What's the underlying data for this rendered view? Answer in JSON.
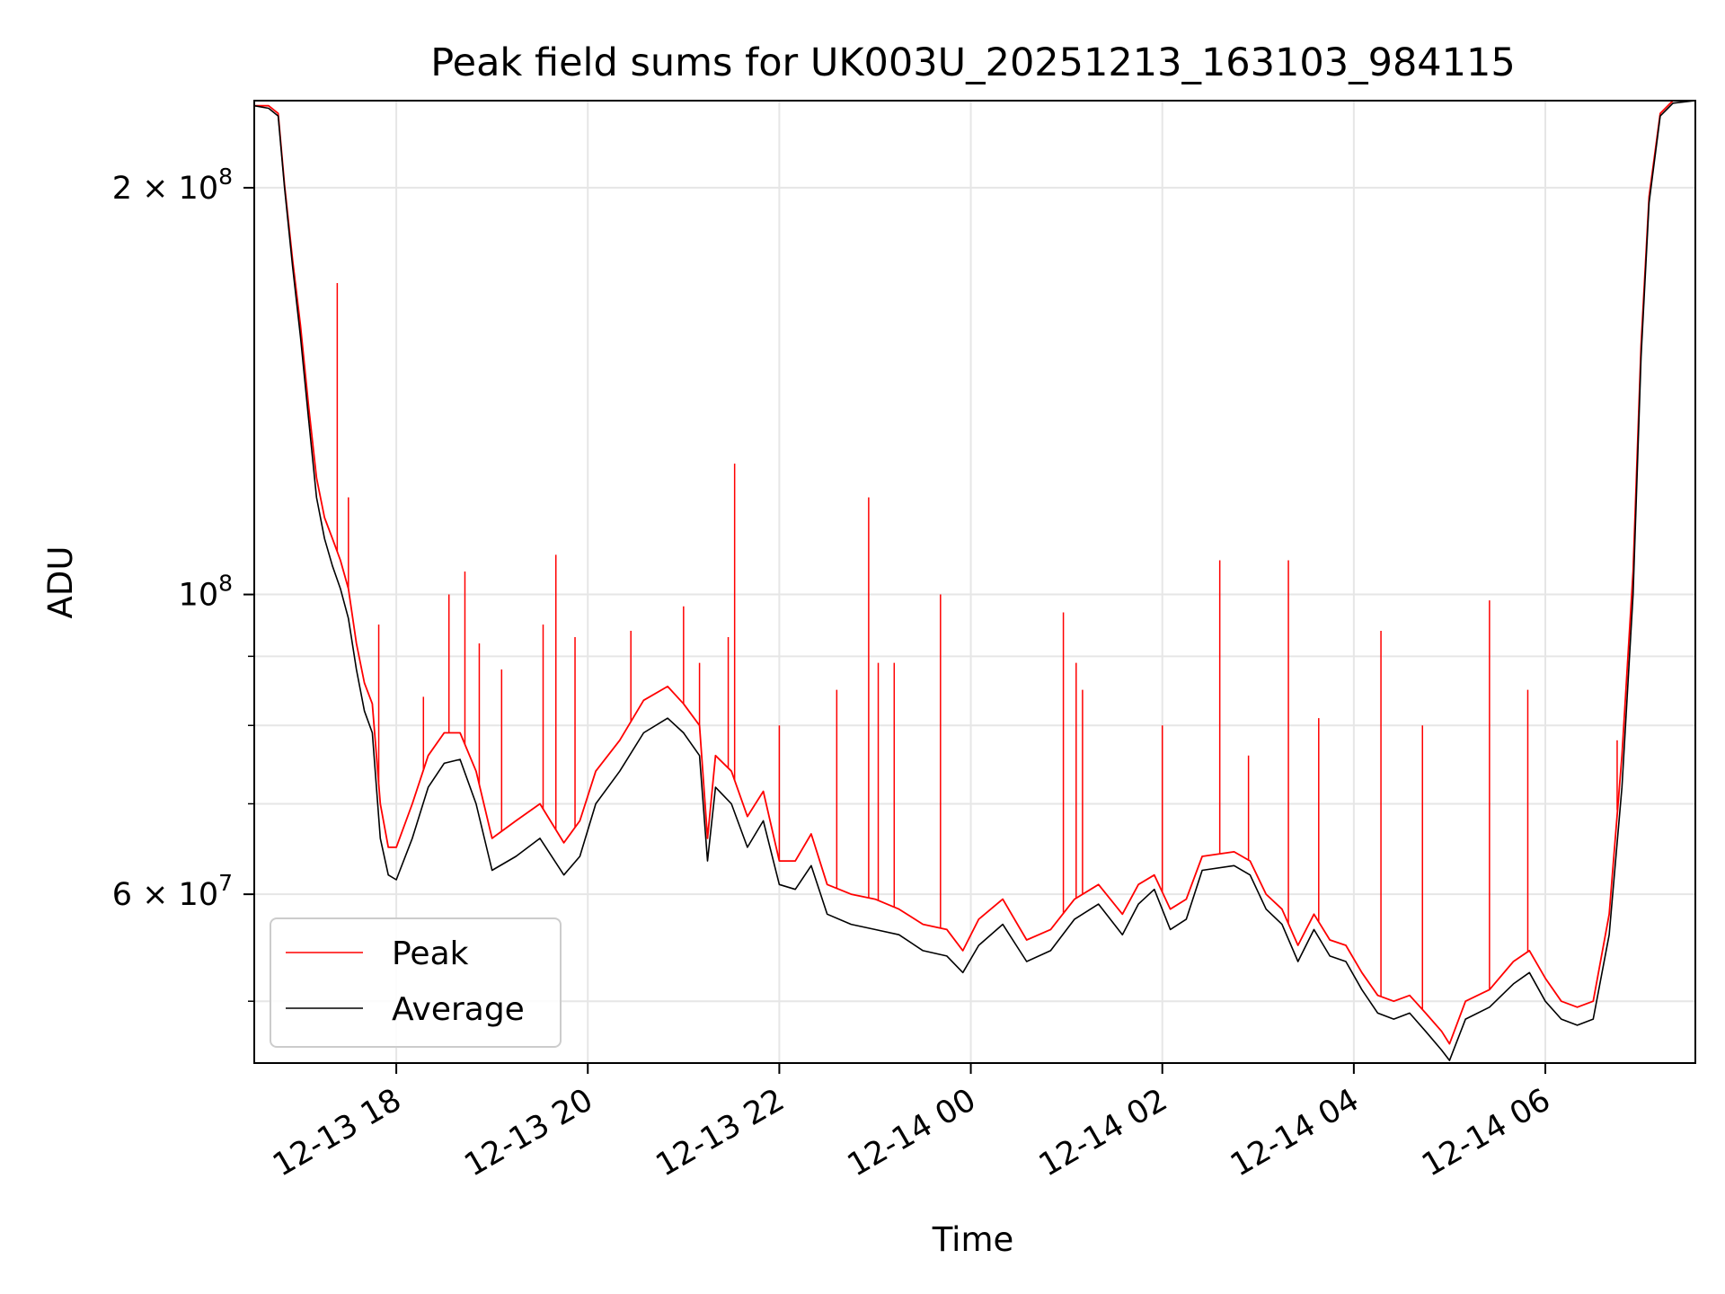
{
  "chart_data": {
    "type": "line",
    "title": "Peak field sums for UK003U_20251213_163103_984115",
    "xlabel": "Time",
    "ylabel": "ADU",
    "yscale": "log",
    "xlim": [
      "2025-12-13T16:31",
      "2025-12-14T07:34"
    ],
    "ylim": [
      45000000,
      232000000
    ],
    "x_ticks": [
      {
        "x": "2025-12-13T18:00",
        "label": "12-13 18"
      },
      {
        "x": "2025-12-13T20:00",
        "label": "12-13 20"
      },
      {
        "x": "2025-12-13T22:00",
        "label": "12-13 22"
      },
      {
        "x": "2025-12-14T00:00",
        "label": "12-14 00"
      },
      {
        "x": "2025-12-14T02:00",
        "label": "12-14 02"
      },
      {
        "x": "2025-12-14T04:00",
        "label": "12-14 04"
      },
      {
        "x": "2025-12-14T06:00",
        "label": "12-14 06"
      }
    ],
    "y_major_ticks": [
      {
        "y": 100000000,
        "base": "10",
        "exp": "8"
      },
      {
        "y": 200000000,
        "mant": "2 × 10",
        "exp": "8"
      },
      {
        "y": 60000000,
        "mant": "6 × 10",
        "exp": "7"
      }
    ],
    "y_minor_ticks": [
      50000000,
      70000000,
      80000000,
      90000000
    ],
    "grid": true,
    "legend_position": "bottom-left",
    "series": [
      {
        "name": "Average",
        "color": "#000000",
        "points": [
          [
            "2025-12-13T16:31",
            230000000
          ],
          [
            "2025-12-13T16:40",
            229000000
          ],
          [
            "2025-12-13T16:46",
            226000000
          ],
          [
            "2025-12-13T16:50",
            200000000
          ],
          [
            "2025-12-13T16:55",
            175000000
          ],
          [
            "2025-12-13T17:00",
            155000000
          ],
          [
            "2025-12-13T17:05",
            135000000
          ],
          [
            "2025-12-13T17:10",
            118000000
          ],
          [
            "2025-12-13T17:15",
            110000000
          ],
          [
            "2025-12-13T17:20",
            105000000
          ],
          [
            "2025-12-13T17:25",
            101000000
          ],
          [
            "2025-12-13T17:30",
            96000000
          ],
          [
            "2025-12-13T17:35",
            88000000
          ],
          [
            "2025-12-13T17:40",
            82000000
          ],
          [
            "2025-12-13T17:45",
            79000000
          ],
          [
            "2025-12-13T17:50",
            66000000
          ],
          [
            "2025-12-13T17:55",
            62000000
          ],
          [
            "2025-12-13T18:00",
            61500000
          ],
          [
            "2025-12-13T18:10",
            66000000
          ],
          [
            "2025-12-13T18:20",
            72000000
          ],
          [
            "2025-12-13T18:30",
            75000000
          ],
          [
            "2025-12-13T18:40",
            75500000
          ],
          [
            "2025-12-13T18:50",
            70000000
          ],
          [
            "2025-12-13T19:00",
            62500000
          ],
          [
            "2025-12-13T19:15",
            64000000
          ],
          [
            "2025-12-13T19:30",
            66000000
          ],
          [
            "2025-12-13T19:45",
            62000000
          ],
          [
            "2025-12-13T19:55",
            64000000
          ],
          [
            "2025-12-13T20:05",
            70000000
          ],
          [
            "2025-12-13T20:20",
            74000000
          ],
          [
            "2025-12-13T20:35",
            79000000
          ],
          [
            "2025-12-13T20:50",
            81000000
          ],
          [
            "2025-12-13T21:00",
            79000000
          ],
          [
            "2025-12-13T21:10",
            76000000
          ],
          [
            "2025-12-13T21:15",
            63500000
          ],
          [
            "2025-12-13T21:20",
            72000000
          ],
          [
            "2025-12-13T21:30",
            70000000
          ],
          [
            "2025-12-13T21:40",
            65000000
          ],
          [
            "2025-12-13T21:50",
            68000000
          ],
          [
            "2025-12-13T22:00",
            61000000
          ],
          [
            "2025-12-13T22:10",
            60500000
          ],
          [
            "2025-12-13T22:20",
            63000000
          ],
          [
            "2025-12-13T22:30",
            58000000
          ],
          [
            "2025-12-13T22:45",
            57000000
          ],
          [
            "2025-12-13T23:00",
            56500000
          ],
          [
            "2025-12-13T23:15",
            56000000
          ],
          [
            "2025-12-13T23:30",
            54500000
          ],
          [
            "2025-12-13T23:45",
            54000000
          ],
          [
            "2025-12-13T23:55",
            52500000
          ],
          [
            "2025-12-14T00:05",
            55000000
          ],
          [
            "2025-12-14T00:20",
            57000000
          ],
          [
            "2025-12-14T00:35",
            53500000
          ],
          [
            "2025-12-14T00:50",
            54500000
          ],
          [
            "2025-12-14T01:05",
            57500000
          ],
          [
            "2025-12-14T01:20",
            59000000
          ],
          [
            "2025-12-14T01:35",
            56000000
          ],
          [
            "2025-12-14T01:45",
            59000000
          ],
          [
            "2025-12-14T01:55",
            60500000
          ],
          [
            "2025-12-14T02:05",
            56500000
          ],
          [
            "2025-12-14T02:15",
            57500000
          ],
          [
            "2025-12-14T02:25",
            62500000
          ],
          [
            "2025-12-14T02:45",
            63000000
          ],
          [
            "2025-12-14T02:55",
            62000000
          ],
          [
            "2025-12-14T03:05",
            58500000
          ],
          [
            "2025-12-14T03:15",
            57000000
          ],
          [
            "2025-12-14T03:25",
            53500000
          ],
          [
            "2025-12-14T03:35",
            56500000
          ],
          [
            "2025-12-14T03:45",
            54000000
          ],
          [
            "2025-12-14T03:55",
            53500000
          ],
          [
            "2025-12-14T04:05",
            51000000
          ],
          [
            "2025-12-14T04:15",
            49000000
          ],
          [
            "2025-12-14T04:25",
            48500000
          ],
          [
            "2025-12-14T04:35",
            49000000
          ],
          [
            "2025-12-14T04:45",
            47500000
          ],
          [
            "2025-12-14T04:55",
            46000000
          ],
          [
            "2025-12-14T05:00",
            45200000
          ],
          [
            "2025-12-14T05:10",
            48500000
          ],
          [
            "2025-12-14T05:25",
            49500000
          ],
          [
            "2025-12-14T05:40",
            51500000
          ],
          [
            "2025-12-14T05:50",
            52500000
          ],
          [
            "2025-12-14T06:00",
            50000000
          ],
          [
            "2025-12-14T06:10",
            48500000
          ],
          [
            "2025-12-14T06:20",
            48000000
          ],
          [
            "2025-12-14T06:30",
            48500000
          ],
          [
            "2025-12-14T06:40",
            56000000
          ],
          [
            "2025-12-14T06:48",
            72000000
          ],
          [
            "2025-12-14T06:55",
            100000000
          ],
          [
            "2025-12-14T07:00",
            150000000
          ],
          [
            "2025-12-14T07:05",
            195000000
          ],
          [
            "2025-12-14T07:12",
            226000000
          ],
          [
            "2025-12-14T07:20",
            231000000
          ],
          [
            "2025-12-14T07:34",
            232000000
          ]
        ]
      },
      {
        "name": "Peak",
        "color": "#ff0000",
        "points": [
          [
            "2025-12-13T16:31",
            230000000
          ],
          [
            "2025-12-13T16:40",
            230000000
          ],
          [
            "2025-12-13T16:46",
            227000000
          ],
          [
            "2025-12-13T16:50",
            201000000
          ],
          [
            "2025-12-13T16:55",
            177000000
          ],
          [
            "2025-12-13T17:00",
            158000000
          ],
          [
            "2025-12-13T17:05",
            138000000
          ],
          [
            "2025-12-13T17:10",
            122000000
          ],
          [
            "2025-12-13T17:15",
            114000000
          ],
          [
            "2025-12-13T17:20",
            110000000
          ],
          [
            "2025-12-13T17:25",
            106000000
          ],
          [
            "2025-12-13T17:30",
            101000000
          ],
          [
            "2025-12-13T17:35",
            92000000
          ],
          [
            "2025-12-13T17:40",
            86000000
          ],
          [
            "2025-12-13T17:45",
            83000000
          ],
          [
            "2025-12-13T17:50",
            70000000
          ],
          [
            "2025-12-13T17:55",
            65000000
          ],
          [
            "2025-12-13T18:00",
            65000000
          ],
          [
            "2025-12-13T18:10",
            70000000
          ],
          [
            "2025-12-13T18:20",
            76000000
          ],
          [
            "2025-12-13T18:30",
            79000000
          ],
          [
            "2025-12-13T18:40",
            79000000
          ],
          [
            "2025-12-13T18:50",
            74000000
          ],
          [
            "2025-12-13T19:00",
            66000000
          ],
          [
            "2025-12-13T19:15",
            68000000
          ],
          [
            "2025-12-13T19:30",
            70000000
          ],
          [
            "2025-12-13T19:45",
            65500000
          ],
          [
            "2025-12-13T19:55",
            68000000
          ],
          [
            "2025-12-13T20:05",
            74000000
          ],
          [
            "2025-12-13T20:20",
            78000000
          ],
          [
            "2025-12-13T20:35",
            83500000
          ],
          [
            "2025-12-13T20:50",
            85500000
          ],
          [
            "2025-12-13T21:00",
            83000000
          ],
          [
            "2025-12-13T21:10",
            80000000
          ],
          [
            "2025-12-13T21:15",
            66000000
          ],
          [
            "2025-12-13T21:20",
            76000000
          ],
          [
            "2025-12-13T21:30",
            74000000
          ],
          [
            "2025-12-13T21:40",
            68500000
          ],
          [
            "2025-12-13T21:50",
            71500000
          ],
          [
            "2025-12-13T22:00",
            63500000
          ],
          [
            "2025-12-13T22:10",
            63500000
          ],
          [
            "2025-12-13T22:20",
            66500000
          ],
          [
            "2025-12-13T22:30",
            61000000
          ],
          [
            "2025-12-13T22:45",
            60000000
          ],
          [
            "2025-12-13T23:00",
            59500000
          ],
          [
            "2025-12-13T23:15",
            58500000
          ],
          [
            "2025-12-13T23:30",
            57000000
          ],
          [
            "2025-12-13T23:45",
            56500000
          ],
          [
            "2025-12-13T23:55",
            54500000
          ],
          [
            "2025-12-14T00:05",
            57500000
          ],
          [
            "2025-12-14T00:20",
            59500000
          ],
          [
            "2025-12-14T00:35",
            55500000
          ],
          [
            "2025-12-14T00:50",
            56500000
          ],
          [
            "2025-12-14T01:05",
            59500000
          ],
          [
            "2025-12-14T01:20",
            61000000
          ],
          [
            "2025-12-14T01:35",
            58000000
          ],
          [
            "2025-12-14T01:45",
            61000000
          ],
          [
            "2025-12-14T01:55",
            62000000
          ],
          [
            "2025-12-14T02:05",
            58500000
          ],
          [
            "2025-12-14T02:15",
            59500000
          ],
          [
            "2025-12-14T02:25",
            64000000
          ],
          [
            "2025-12-14T02:45",
            64500000
          ],
          [
            "2025-12-14T02:55",
            63500000
          ],
          [
            "2025-12-14T03:05",
            60000000
          ],
          [
            "2025-12-14T03:15",
            58500000
          ],
          [
            "2025-12-14T03:25",
            55000000
          ],
          [
            "2025-12-14T03:35",
            58000000
          ],
          [
            "2025-12-14T03:45",
            55500000
          ],
          [
            "2025-12-14T03:55",
            55000000
          ],
          [
            "2025-12-14T04:05",
            52500000
          ],
          [
            "2025-12-14T04:15",
            50500000
          ],
          [
            "2025-12-14T04:25",
            50000000
          ],
          [
            "2025-12-14T04:35",
            50500000
          ],
          [
            "2025-12-14T04:45",
            49000000
          ],
          [
            "2025-12-14T04:55",
            47500000
          ],
          [
            "2025-12-14T05:00",
            46500000
          ],
          [
            "2025-12-14T05:10",
            50000000
          ],
          [
            "2025-12-14T05:25",
            51000000
          ],
          [
            "2025-12-14T05:40",
            53500000
          ],
          [
            "2025-12-14T05:50",
            54500000
          ],
          [
            "2025-12-14T06:00",
            52000000
          ],
          [
            "2025-12-14T06:10",
            50000000
          ],
          [
            "2025-12-14T06:20",
            49500000
          ],
          [
            "2025-12-14T06:30",
            50000000
          ],
          [
            "2025-12-14T06:40",
            58000000
          ],
          [
            "2025-12-14T06:48",
            76000000
          ],
          [
            "2025-12-14T06:55",
            104000000
          ],
          [
            "2025-12-14T07:00",
            153000000
          ],
          [
            "2025-12-14T07:05",
            197000000
          ],
          [
            "2025-12-14T07:12",
            227000000
          ],
          [
            "2025-12-14T07:20",
            232000000
          ],
          [
            "2025-12-14T07:34",
            232000000
          ]
        ],
        "spikes": [
          [
            "2025-12-13T17:23",
            170000000
          ],
          [
            "2025-12-13T17:30",
            118000000
          ],
          [
            "2025-12-13T17:49",
            95000000
          ],
          [
            "2025-12-13T18:17",
            84000000
          ],
          [
            "2025-12-13T18:33",
            100000000
          ],
          [
            "2025-12-13T18:43",
            104000000
          ],
          [
            "2025-12-13T18:52",
            92000000
          ],
          [
            "2025-12-13T19:06",
            88000000
          ],
          [
            "2025-12-13T19:32",
            95000000
          ],
          [
            "2025-12-13T19:40",
            107000000
          ],
          [
            "2025-12-13T19:52",
            93000000
          ],
          [
            "2025-12-13T20:27",
            94000000
          ],
          [
            "2025-12-13T21:00",
            98000000
          ],
          [
            "2025-12-13T21:10",
            89000000
          ],
          [
            "2025-12-13T21:28",
            93000000
          ],
          [
            "2025-12-13T21:32",
            125000000
          ],
          [
            "2025-12-13T22:00",
            80000000
          ],
          [
            "2025-12-13T22:36",
            85000000
          ],
          [
            "2025-12-13T22:56",
            118000000
          ],
          [
            "2025-12-13T23:02",
            89000000
          ],
          [
            "2025-12-13T23:12",
            89000000
          ],
          [
            "2025-12-13T23:41",
            100000000
          ],
          [
            "2025-12-14T00:58",
            97000000
          ],
          [
            "2025-12-14T01:06",
            89000000
          ],
          [
            "2025-12-14T01:10",
            85000000
          ],
          [
            "2025-12-14T02:00",
            80000000
          ],
          [
            "2025-12-14T02:36",
            106000000
          ],
          [
            "2025-12-14T02:54",
            76000000
          ],
          [
            "2025-12-14T03:19",
            106000000
          ],
          [
            "2025-12-14T03:38",
            81000000
          ],
          [
            "2025-12-14T04:17",
            94000000
          ],
          [
            "2025-12-14T04:43",
            80000000
          ],
          [
            "2025-12-14T05:25",
            99000000
          ],
          [
            "2025-12-14T05:49",
            85000000
          ],
          [
            "2025-12-14T06:45",
            78000000
          ]
        ]
      }
    ]
  }
}
